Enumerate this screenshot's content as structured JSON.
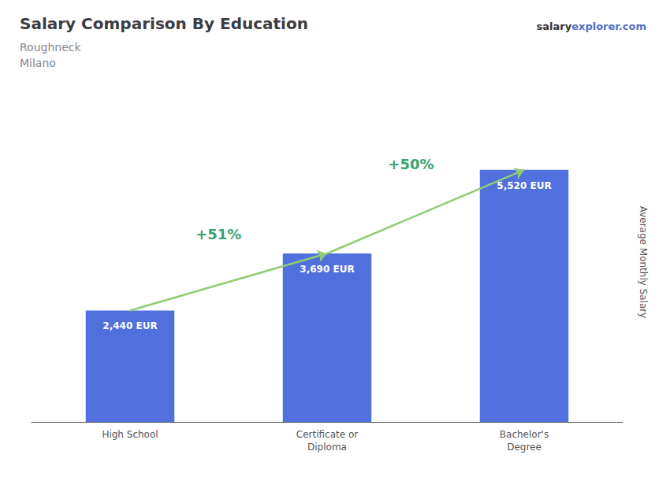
{
  "chart_data": {
    "type": "bar",
    "title": "Salary Comparison By Education",
    "subtitle": [
      "Roughneck",
      "Milano"
    ],
    "watermark": [
      "salary",
      "explorer.com"
    ],
    "ylabel": "Average Monthly Salary",
    "categories": [
      "High School",
      "Certificate or\nDiploma",
      "Bachelor's\nDegree"
    ],
    "values": [
      2440,
      3690,
      5520
    ],
    "value_labels": [
      "2,440 EUR",
      "3,690 EUR",
      "5,520 EUR"
    ],
    "data_labels": true,
    "annotations": [
      "+51%",
      "+50%"
    ],
    "ylim": [
      0,
      7000
    ],
    "tick_labels": "x",
    "grid": false
  }
}
